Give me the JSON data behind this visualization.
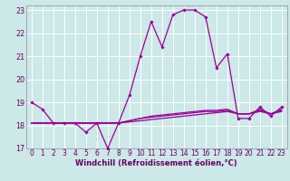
{
  "title": "",
  "xlabel": "Windchill (Refroidissement éolien,°C)",
  "ylabel": "",
  "background_color": "#cce8e8",
  "grid_color": "#ffffff",
  "line_color": "#990099",
  "xlim": [
    -0.5,
    23.5
  ],
  "ylim": [
    17,
    23.2
  ],
  "yticks": [
    17,
    18,
    19,
    20,
    21,
    22,
    23
  ],
  "xticks": [
    0,
    1,
    2,
    3,
    4,
    5,
    6,
    7,
    8,
    9,
    10,
    11,
    12,
    13,
    14,
    15,
    16,
    17,
    18,
    19,
    20,
    21,
    22,
    23
  ],
  "series": [
    [
      19.0,
      18.7,
      18.1,
      18.1,
      18.1,
      17.7,
      18.1,
      17.0,
      18.1,
      19.3,
      21.0,
      22.5,
      21.4,
      22.8,
      23.0,
      23.0,
      22.7,
      20.5,
      21.1,
      18.3,
      18.3,
      18.8,
      18.4,
      18.8
    ],
    [
      18.1,
      18.1,
      18.1,
      18.1,
      18.1,
      18.1,
      18.1,
      18.1,
      18.1,
      18.15,
      18.2,
      18.25,
      18.3,
      18.35,
      18.4,
      18.45,
      18.5,
      18.55,
      18.6,
      18.5,
      18.5,
      18.6,
      18.5,
      18.6
    ],
    [
      18.1,
      18.1,
      18.1,
      18.1,
      18.1,
      18.1,
      18.1,
      18.1,
      18.1,
      18.2,
      18.3,
      18.35,
      18.4,
      18.45,
      18.5,
      18.55,
      18.6,
      18.6,
      18.65,
      18.5,
      18.5,
      18.65,
      18.5,
      18.65
    ],
    [
      18.1,
      18.1,
      18.1,
      18.1,
      18.1,
      18.1,
      18.1,
      18.1,
      18.1,
      18.2,
      18.3,
      18.4,
      18.45,
      18.5,
      18.55,
      18.6,
      18.65,
      18.65,
      18.7,
      18.5,
      18.5,
      18.7,
      18.5,
      18.7
    ]
  ],
  "xlabel_fontsize": 6,
  "xlabel_color": "#660066",
  "tick_fontsize": 5.5,
  "tick_color": "#660066",
  "spine_color": "#9999aa",
  "marker": "D",
  "markersize": 1.8,
  "linewidth": 0.9
}
